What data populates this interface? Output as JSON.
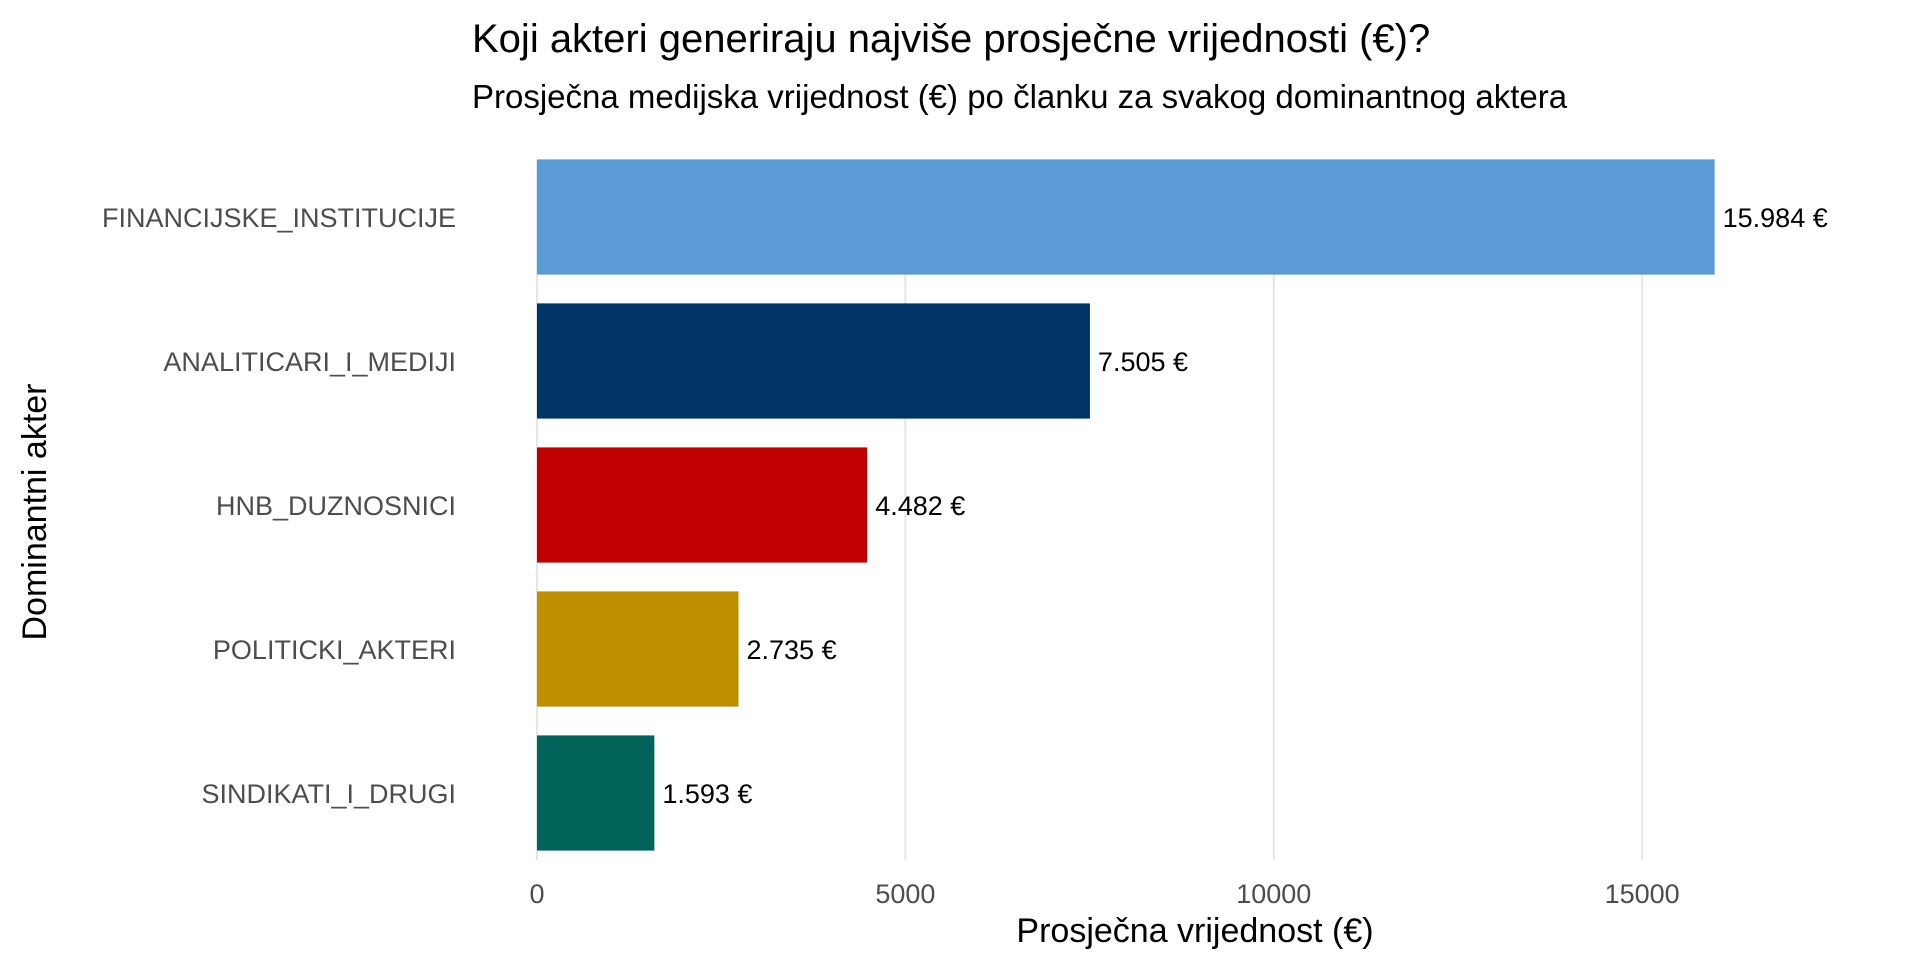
{
  "chart_data": {
    "type": "bar",
    "orientation": "horizontal",
    "title": "Koji akteri generiraju najviše prosječne vrijednosti (€)?",
    "subtitle": "Prosječna medijska vrijednost (€) po članku za svakog dominantnog aktera",
    "xlabel": "Prosječna vrijednost (€)",
    "ylabel": "Dominantni akter",
    "categories": [
      "FINANCIJSKE_INSTITUCIJE",
      "ANALITICARI_I_MEDIJI",
      "HNB_DUZNOSNICI",
      "POLITICKI_AKTERI",
      "SINDIKATI_I_DRUGI"
    ],
    "values": [
      15984,
      7505,
      4482,
      2735,
      1593
    ],
    "value_labels": [
      "15.984 €",
      "7.505 €",
      "4.482 €",
      "2.735 €",
      "1.593 €"
    ],
    "colors": [
      "#5b9bd5",
      "#003366",
      "#c00000",
      "#bf8f00",
      "#00635a"
    ],
    "xlim": [
      0,
      18500
    ],
    "x_ticks": [
      0,
      5000,
      10000,
      15000
    ],
    "x_tick_labels": [
      "0",
      "5000",
      "10000",
      "15000"
    ],
    "grid": true
  }
}
